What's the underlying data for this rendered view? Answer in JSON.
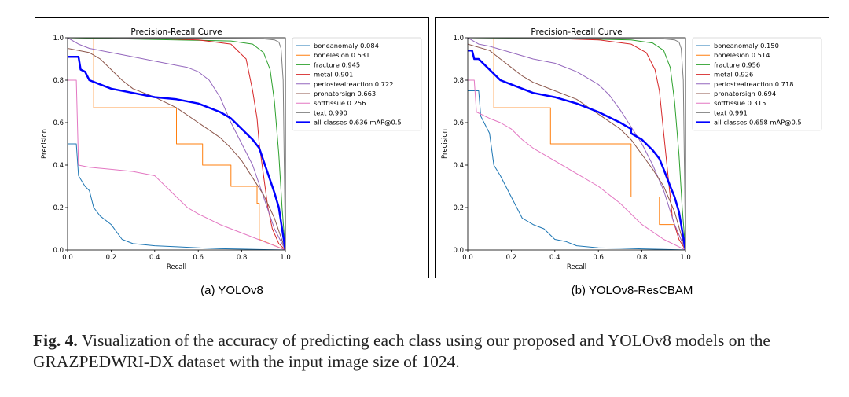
{
  "figure": {
    "label": "Fig. 4.",
    "caption": "Visualization of the accuracy of predicting each class using our proposed and YOLOv8 models on the GRAZPEDWRI-DX dataset with the input image size of 1024."
  },
  "colors": {
    "boneanomaly": "#1f77b4",
    "bonelesion": "#ff7f0e",
    "fracture": "#2ca02c",
    "metal": "#d62728",
    "periostealreaction": "#9467bd",
    "pronatorsign": "#8c564b",
    "softtissue": "#e377c2",
    "text": "#7f7f7f",
    "all": "#0000ff"
  },
  "chart_data": [
    {
      "type": "line",
      "subcaption": "(a) YOLOv8",
      "title": "Precision-Recall Curve",
      "xlabel": "Recall",
      "ylabel": "Precision",
      "xlim": [
        0,
        1
      ],
      "ylim": [
        0,
        1
      ],
      "xticks": [
        "0.0",
        "0.2",
        "0.4",
        "0.6",
        "0.8",
        "1.0"
      ],
      "yticks": [
        "0.0",
        "0.2",
        "0.4",
        "0.6",
        "0.8",
        "1.0"
      ],
      "legend_position": "right",
      "series": [
        {
          "name": "boneanomaly 0.084",
          "color_key": "boneanomaly",
          "width": 1,
          "x": [
            0,
            0.04,
            0.05,
            0.08,
            0.1,
            0.12,
            0.15,
            0.2,
            0.25,
            0.3,
            0.4,
            0.5,
            0.6,
            0.7,
            0.8,
            0.9,
            1.0
          ],
          "y": [
            0.5,
            0.5,
            0.35,
            0.3,
            0.28,
            0.2,
            0.16,
            0.12,
            0.05,
            0.03,
            0.02,
            0.015,
            0.01,
            0.006,
            0.004,
            0.002,
            0.0
          ]
        },
        {
          "name": "bonelesion 0.531",
          "color_key": "bonelesion",
          "width": 1,
          "x": [
            0,
            0.12,
            0.12,
            0.5,
            0.5,
            0.62,
            0.62,
            0.75,
            0.75,
            0.87,
            0.87,
            0.88,
            0.88,
            1.0
          ],
          "y": [
            1.0,
            1.0,
            0.67,
            0.67,
            0.5,
            0.5,
            0.4,
            0.4,
            0.3,
            0.3,
            0.22,
            0.22,
            0.05,
            0.0
          ]
        },
        {
          "name": "fracture 0.945",
          "color_key": "fracture",
          "width": 1,
          "x": [
            0,
            0.5,
            0.75,
            0.85,
            0.9,
            0.93,
            0.95,
            0.97,
            0.985,
            1.0
          ],
          "y": [
            1.0,
            0.99,
            0.985,
            0.97,
            0.93,
            0.85,
            0.7,
            0.45,
            0.2,
            0.0
          ]
        },
        {
          "name": "metal 0.901",
          "color_key": "metal",
          "width": 1,
          "x": [
            0,
            0.3,
            0.6,
            0.75,
            0.82,
            0.85,
            0.87,
            0.88,
            0.9,
            0.92,
            0.94,
            0.97,
            1.0
          ],
          "y": [
            1.0,
            1.0,
            0.99,
            0.97,
            0.9,
            0.75,
            0.62,
            0.5,
            0.35,
            0.2,
            0.1,
            0.03,
            0.0
          ]
        },
        {
          "name": "periostealreaction 0.722",
          "color_key": "periostealreaction",
          "width": 1,
          "x": [
            0,
            0.05,
            0.1,
            0.2,
            0.3,
            0.4,
            0.5,
            0.55,
            0.6,
            0.65,
            0.7,
            0.75,
            0.8,
            0.85,
            0.9,
            0.95,
            1.0
          ],
          "y": [
            1.0,
            0.97,
            0.95,
            0.93,
            0.91,
            0.89,
            0.87,
            0.86,
            0.84,
            0.8,
            0.72,
            0.6,
            0.5,
            0.4,
            0.25,
            0.1,
            0.0
          ]
        },
        {
          "name": "pronatorsign 0.663",
          "color_key": "pronatorsign",
          "width": 1,
          "x": [
            0,
            0.1,
            0.15,
            0.2,
            0.25,
            0.3,
            0.4,
            0.5,
            0.6,
            0.7,
            0.75,
            0.8,
            0.85,
            0.9,
            0.95,
            1.0
          ],
          "y": [
            0.95,
            0.93,
            0.9,
            0.85,
            0.8,
            0.76,
            0.72,
            0.67,
            0.6,
            0.53,
            0.48,
            0.42,
            0.34,
            0.26,
            0.15,
            0.0
          ]
        },
        {
          "name": "softtissue 0.256",
          "color_key": "softtissue",
          "width": 1,
          "x": [
            0,
            0.04,
            0.05,
            0.1,
            0.2,
            0.3,
            0.4,
            0.45,
            0.5,
            0.55,
            0.6,
            0.7,
            0.8,
            0.9,
            1.0
          ],
          "y": [
            0.8,
            0.8,
            0.4,
            0.39,
            0.38,
            0.37,
            0.35,
            0.3,
            0.25,
            0.2,
            0.17,
            0.12,
            0.08,
            0.04,
            0.0
          ]
        },
        {
          "name": "text 0.990",
          "color_key": "text",
          "width": 1,
          "x": [
            0,
            0.9,
            0.95,
            0.97,
            0.98,
            0.99,
            1.0
          ],
          "y": [
            1.0,
            0.995,
            0.99,
            0.98,
            0.95,
            0.8,
            0.0
          ]
        },
        {
          "name": "all classes 0.636 mAP@0.5",
          "color_key": "all",
          "width": 2.5,
          "x": [
            0,
            0.05,
            0.06,
            0.08,
            0.1,
            0.15,
            0.2,
            0.3,
            0.4,
            0.5,
            0.6,
            0.7,
            0.75,
            0.8,
            0.85,
            0.88,
            0.9,
            0.93,
            0.95,
            0.97,
            1.0
          ],
          "y": [
            0.91,
            0.91,
            0.85,
            0.84,
            0.8,
            0.78,
            0.76,
            0.74,
            0.72,
            0.71,
            0.69,
            0.65,
            0.62,
            0.57,
            0.52,
            0.48,
            0.42,
            0.33,
            0.27,
            0.2,
            0.0
          ]
        }
      ]
    },
    {
      "type": "line",
      "subcaption": "(b) YOLOv8-ResCBAM",
      "title": "Precision-Recall Curve",
      "xlabel": "Recall",
      "ylabel": "Precision",
      "xlim": [
        0,
        1
      ],
      "ylim": [
        0,
        1
      ],
      "xticks": [
        "0.0",
        "0.2",
        "0.4",
        "0.6",
        "0.8",
        "1.0"
      ],
      "yticks": [
        "0.0",
        "0.2",
        "0.4",
        "0.6",
        "0.8",
        "1.0"
      ],
      "legend_position": "right",
      "series": [
        {
          "name": "boneanomaly 0.150",
          "color_key": "boneanomaly",
          "width": 1,
          "x": [
            0,
            0.05,
            0.06,
            0.1,
            0.12,
            0.15,
            0.2,
            0.25,
            0.3,
            0.35,
            0.4,
            0.45,
            0.5,
            0.6,
            0.7,
            0.8,
            0.9,
            1.0
          ],
          "y": [
            0.75,
            0.75,
            0.63,
            0.55,
            0.4,
            0.35,
            0.25,
            0.15,
            0.12,
            0.1,
            0.05,
            0.04,
            0.02,
            0.01,
            0.008,
            0.005,
            0.003,
            0.0
          ]
        },
        {
          "name": "bonelesion 0.514",
          "color_key": "bonelesion",
          "width": 1,
          "x": [
            0,
            0.12,
            0.12,
            0.38,
            0.38,
            0.75,
            0.75,
            0.88,
            0.88,
            0.95,
            1.0
          ],
          "y": [
            1.0,
            1.0,
            0.67,
            0.67,
            0.5,
            0.5,
            0.25,
            0.25,
            0.12,
            0.12,
            0.0
          ]
        },
        {
          "name": "fracture 0.956",
          "color_key": "fracture",
          "width": 1,
          "x": [
            0,
            0.5,
            0.75,
            0.85,
            0.9,
            0.93,
            0.95,
            0.97,
            0.985,
            1.0
          ],
          "y": [
            1.0,
            0.995,
            0.99,
            0.975,
            0.94,
            0.86,
            0.7,
            0.45,
            0.2,
            0.0
          ]
        },
        {
          "name": "metal 0.926",
          "color_key": "metal",
          "width": 1,
          "x": [
            0,
            0.3,
            0.6,
            0.75,
            0.82,
            0.86,
            0.88,
            0.9,
            0.92,
            0.94,
            0.97,
            1.0
          ],
          "y": [
            1.0,
            1.0,
            0.99,
            0.97,
            0.93,
            0.85,
            0.75,
            0.55,
            0.35,
            0.15,
            0.05,
            0.0
          ]
        },
        {
          "name": "periostealreaction 0.718",
          "color_key": "periostealreaction",
          "width": 1,
          "x": [
            0,
            0.05,
            0.1,
            0.2,
            0.3,
            0.4,
            0.5,
            0.6,
            0.65,
            0.7,
            0.75,
            0.8,
            0.85,
            0.9,
            0.95,
            1.0
          ],
          "y": [
            1.0,
            0.97,
            0.96,
            0.93,
            0.9,
            0.88,
            0.84,
            0.78,
            0.73,
            0.66,
            0.58,
            0.5,
            0.4,
            0.28,
            0.12,
            0.0
          ]
        },
        {
          "name": "pronatorsign 0.694",
          "color_key": "pronatorsign",
          "width": 1,
          "x": [
            0,
            0.1,
            0.15,
            0.2,
            0.25,
            0.3,
            0.4,
            0.5,
            0.6,
            0.7,
            0.75,
            0.8,
            0.85,
            0.9,
            0.95,
            1.0
          ],
          "y": [
            0.97,
            0.94,
            0.9,
            0.86,
            0.82,
            0.79,
            0.75,
            0.71,
            0.64,
            0.57,
            0.52,
            0.45,
            0.38,
            0.3,
            0.18,
            0.0
          ]
        },
        {
          "name": "softtissue 0.315",
          "color_key": "softtissue",
          "width": 1,
          "x": [
            0,
            0.03,
            0.04,
            0.1,
            0.15,
            0.2,
            0.25,
            0.3,
            0.4,
            0.5,
            0.6,
            0.7,
            0.8,
            0.9,
            1.0
          ],
          "y": [
            0.8,
            0.8,
            0.65,
            0.62,
            0.6,
            0.57,
            0.52,
            0.48,
            0.42,
            0.36,
            0.3,
            0.22,
            0.12,
            0.05,
            0.0
          ]
        },
        {
          "name": "text 0.991",
          "color_key": "text",
          "width": 1,
          "x": [
            0,
            0.9,
            0.95,
            0.97,
            0.98,
            0.99,
            1.0
          ],
          "y": [
            1.0,
            0.995,
            0.99,
            0.98,
            0.95,
            0.8,
            0.0
          ]
        },
        {
          "name": "all classes 0.658 mAP@0.5",
          "color_key": "all",
          "width": 2.5,
          "x": [
            0,
            0.02,
            0.03,
            0.05,
            0.1,
            0.15,
            0.2,
            0.3,
            0.4,
            0.5,
            0.6,
            0.7,
            0.75,
            0.75,
            0.8,
            0.85,
            0.88,
            0.9,
            0.93,
            0.95,
            0.97,
            1.0
          ],
          "y": [
            0.94,
            0.94,
            0.9,
            0.9,
            0.85,
            0.8,
            0.78,
            0.74,
            0.72,
            0.69,
            0.65,
            0.6,
            0.57,
            0.55,
            0.52,
            0.47,
            0.43,
            0.38,
            0.3,
            0.25,
            0.18,
            0.0
          ]
        }
      ]
    }
  ]
}
